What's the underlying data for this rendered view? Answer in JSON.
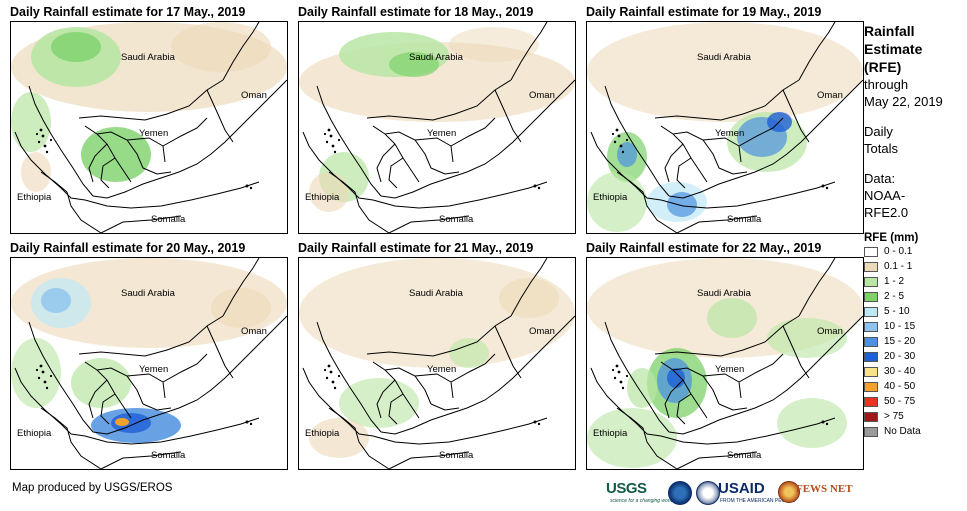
{
  "panels": [
    {
      "title": "Daily Rainfall estimate for 17 May., 2019"
    },
    {
      "title": "Daily Rainfall estimate for 18 May., 2019"
    },
    {
      "title": "Daily Rainfall estimate for 19 May., 2019"
    },
    {
      "title": "Daily Rainfall estimate for 20 May., 2019"
    },
    {
      "title": "Daily Rainfall estimate for 21 May., 2019"
    },
    {
      "title": "Daily Rainfall estimate for 22 May., 2019"
    }
  ],
  "places": {
    "saudi_arabia": "Saudi Arabia",
    "oman": "Oman",
    "yemen": "Yemen",
    "ethiopia": "Ethiopia",
    "somalia": "Somalia"
  },
  "sidebar": {
    "title_line1": "Rainfall",
    "title_line2": "Estimate",
    "title_line3": "(RFE)",
    "through": "through",
    "date": "May 22, 2019",
    "daily": "Daily",
    "totals": "Totals",
    "data_label": "Data:",
    "source_line1": "NOAA-",
    "source_line2": "RFE2.0"
  },
  "legend": {
    "title": "RFE (mm)",
    "items": [
      {
        "label": "0 - 0.1",
        "color": "#ffffff"
      },
      {
        "label": "0.1 - 1",
        "color": "#ecd9b8"
      },
      {
        "label": "1 - 2",
        "color": "#b9e6a4"
      },
      {
        "label": "2 - 5",
        "color": "#7dd26b"
      },
      {
        "label": "5 - 10",
        "color": "#bfe8f7"
      },
      {
        "label": "10 - 15",
        "color": "#8dc4ef"
      },
      {
        "label": "15 - 20",
        "color": "#4d92e0"
      },
      {
        "label": "20 - 30",
        "color": "#1f5fd6"
      },
      {
        "label": "30 - 40",
        "color": "#f7e28a"
      },
      {
        "label": "40 - 50",
        "color": "#f2a22c"
      },
      {
        "label": "50 - 75",
        "color": "#e8331e"
      },
      {
        "label": "> 75",
        "color": "#9e1a1a"
      },
      {
        "label": "No Data",
        "color": "#9a9a9a"
      }
    ]
  },
  "credit": "Map produced by USGS/EROS",
  "logos": {
    "usgs": "USGS",
    "usgs_tagline": "science for a changing world",
    "usaid": "USAID",
    "usaid_tagline": "FROM THE AMERICAN PEOPLE",
    "fews": "FEWS NET"
  }
}
